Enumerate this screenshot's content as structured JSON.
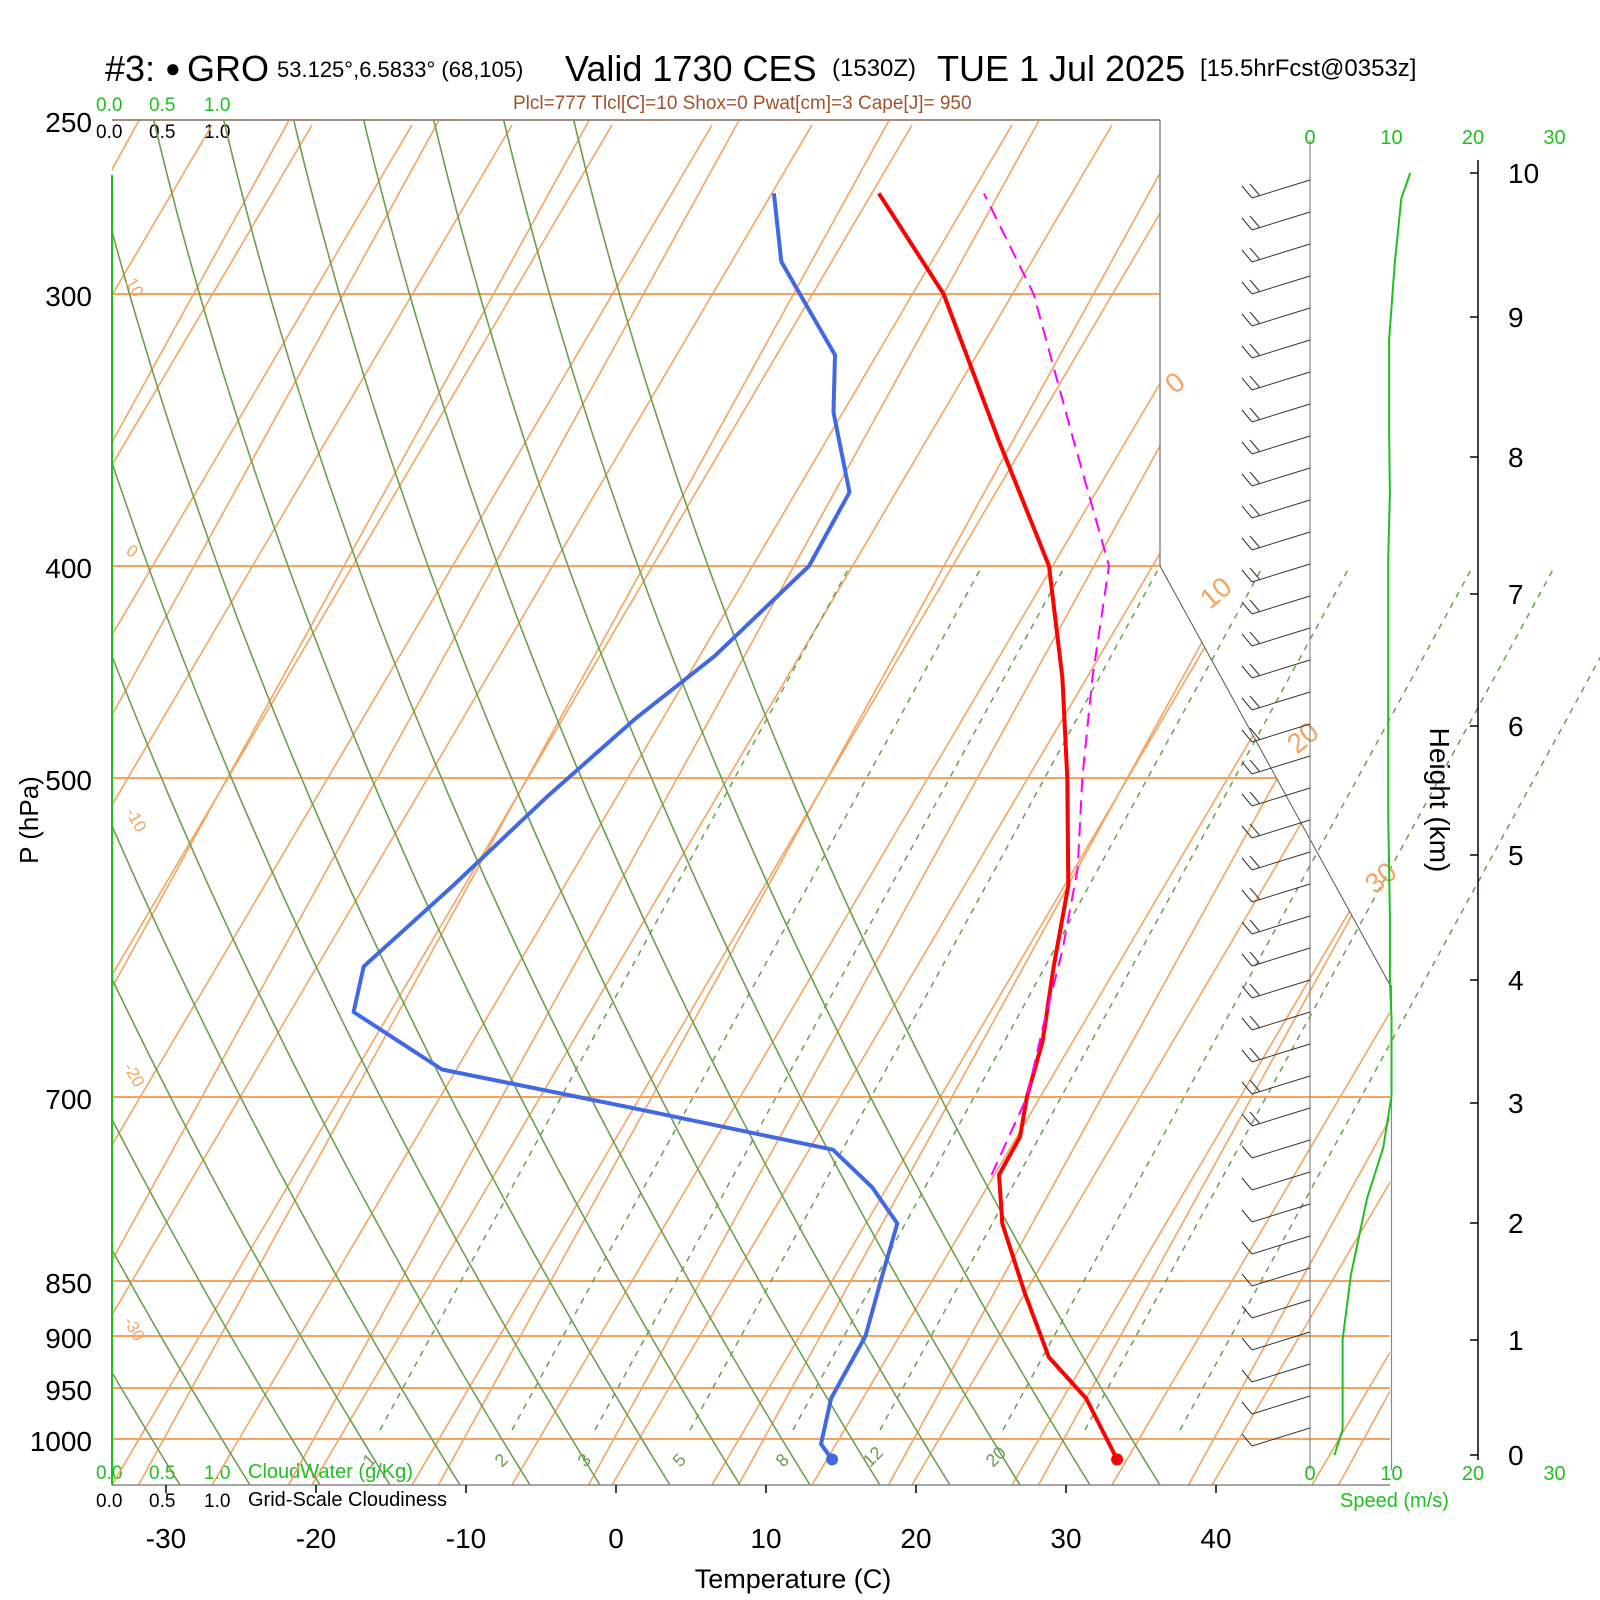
{
  "header": {
    "station_id": "#3:",
    "station_symbol": "●",
    "station_name": "GRO",
    "coords": "53.125°,6.5833° (68,105)",
    "valid_label": "Valid 1730 CES",
    "zulu": "(1530Z)",
    "date": "TUE 1 Jul 2025",
    "forecast": "[15.5hrFcst@0353z]"
  },
  "indices_line": "Plcl=777 Tlcl[C]=10 Shox=0 Pwat[cm]=3 Cape[J]= 950",
  "scale_top": {
    "green": [
      "0.0",
      "0.5",
      "1.0"
    ],
    "black": [
      "0.0",
      "0.5",
      "1.0"
    ]
  },
  "scale_bottom": {
    "green": [
      "0.0",
      "0.5",
      "1.0"
    ],
    "green_label": "CloudWater (g/Kg)",
    "black": [
      "0.0",
      "0.5",
      "1.0"
    ],
    "black_label": "Grid-Scale Cloudiness"
  },
  "colors": {
    "temperature": "#ff0000",
    "dewpoint": "#4169e1",
    "parcel": "#ff00ff",
    "isotherm": "#f4a460",
    "dry_adiabat": "#6b9f4f",
    "mixing_ratio": "#6b9f4f",
    "wind_speed": "#1fbf1f",
    "scale_green": "#1fbf1f",
    "indices": "#a0522d"
  },
  "chart_data": {
    "type": "line",
    "title": "Valid 1730 CES (1530Z) TUE 1 Jul 2025",
    "xlabel": "Temperature (C)",
    "ylabel": "P (hPa)",
    "xlim": [
      -33,
      36
    ],
    "ylim": [
      1030,
      250
    ],
    "x_ticks": [
      "-30",
      "-20",
      "-10",
      "0",
      "10",
      "20",
      "30",
      "40"
    ],
    "y_ticks": [
      "250",
      "300",
      "400",
      "500",
      "700",
      "850",
      "900",
      "950",
      "1000"
    ],
    "isotherm_labels": [
      "10",
      "0",
      "-10",
      "-20",
      "-30",
      "0",
      "10",
      "20",
      "30"
    ],
    "mixing_ratio_labels": [
      "1",
      "2",
      "3",
      "5",
      "8",
      "12",
      "20"
    ],
    "series": [
      {
        "name": "Temperature",
        "points": [
          [
            34.3,
            1020
          ],
          [
            30,
            960
          ],
          [
            26,
            920
          ],
          [
            22,
            860
          ],
          [
            18,
            800
          ],
          [
            16,
            760
          ],
          [
            16,
            730
          ],
          [
            15,
            700
          ],
          [
            14,
            660
          ],
          [
            12,
            610
          ],
          [
            10,
            560
          ],
          [
            6,
            500
          ],
          [
            2,
            450
          ],
          [
            -3,
            400
          ],
          [
            -11,
            350
          ],
          [
            -20,
            300
          ],
          [
            -28,
            270
          ]
        ]
      },
      {
        "name": "Dewpoint",
        "points": [
          [
            15.3,
            1020
          ],
          [
            14,
            1005
          ],
          [
            13,
            960
          ],
          [
            13,
            900
          ],
          [
            12,
            850
          ],
          [
            11,
            800
          ],
          [
            8,
            770
          ],
          [
            4,
            740
          ],
          [
            -10,
            710
          ],
          [
            -25,
            680
          ],
          [
            -33,
            640
          ],
          [
            -34,
            610
          ],
          [
            -31,
            560
          ],
          [
            -28,
            510
          ],
          [
            -25,
            470
          ],
          [
            -22,
            440
          ],
          [
            -19,
            400
          ],
          [
            -19,
            370
          ],
          [
            -23,
            340
          ],
          [
            -25,
            320
          ],
          [
            -32,
            290
          ],
          [
            -35,
            270
          ]
        ]
      },
      {
        "name": "Parcel",
        "points": [
          [
            15.5,
            760
          ],
          [
            15,
            700
          ],
          [
            13.5,
            650
          ],
          [
            12,
            600
          ],
          [
            10,
            550
          ],
          [
            7,
            500
          ],
          [
            4,
            450
          ],
          [
            1,
            400
          ],
          [
            -6,
            350
          ],
          [
            -14,
            300
          ],
          [
            -21,
            270
          ]
        ]
      }
    ],
    "height_axis": {
      "label": "Height (km)",
      "ticks": [
        "0",
        "1",
        "2",
        "3",
        "4",
        "5",
        "6",
        "7",
        "8",
        "9",
        "10"
      ]
    },
    "wind_speed": {
      "xlabel": "Speed (m/s)",
      "ticks": [
        "0",
        "10",
        "20",
        "30"
      ],
      "points": [
        [
          3,
          0.0
        ],
        [
          4,
          0.2
        ],
        [
          4,
          0.9
        ],
        [
          5,
          1.4
        ],
        [
          7,
          2.0
        ],
        [
          9,
          2.4
        ],
        [
          10,
          2.8
        ],
        [
          10,
          3.1
        ],
        [
          10,
          3.4
        ],
        [
          9.8,
          3.7
        ],
        [
          9.8,
          4.2
        ],
        [
          9.6,
          5.0
        ],
        [
          9.6,
          6.0
        ],
        [
          9.6,
          7.0
        ],
        [
          9.8,
          7.5
        ],
        [
          9.7,
          8.0
        ],
        [
          9.7,
          8.7
        ],
        [
          10.4,
          9.3
        ],
        [
          11.2,
          9.8
        ],
        [
          12.3,
          10.0
        ]
      ]
    }
  }
}
